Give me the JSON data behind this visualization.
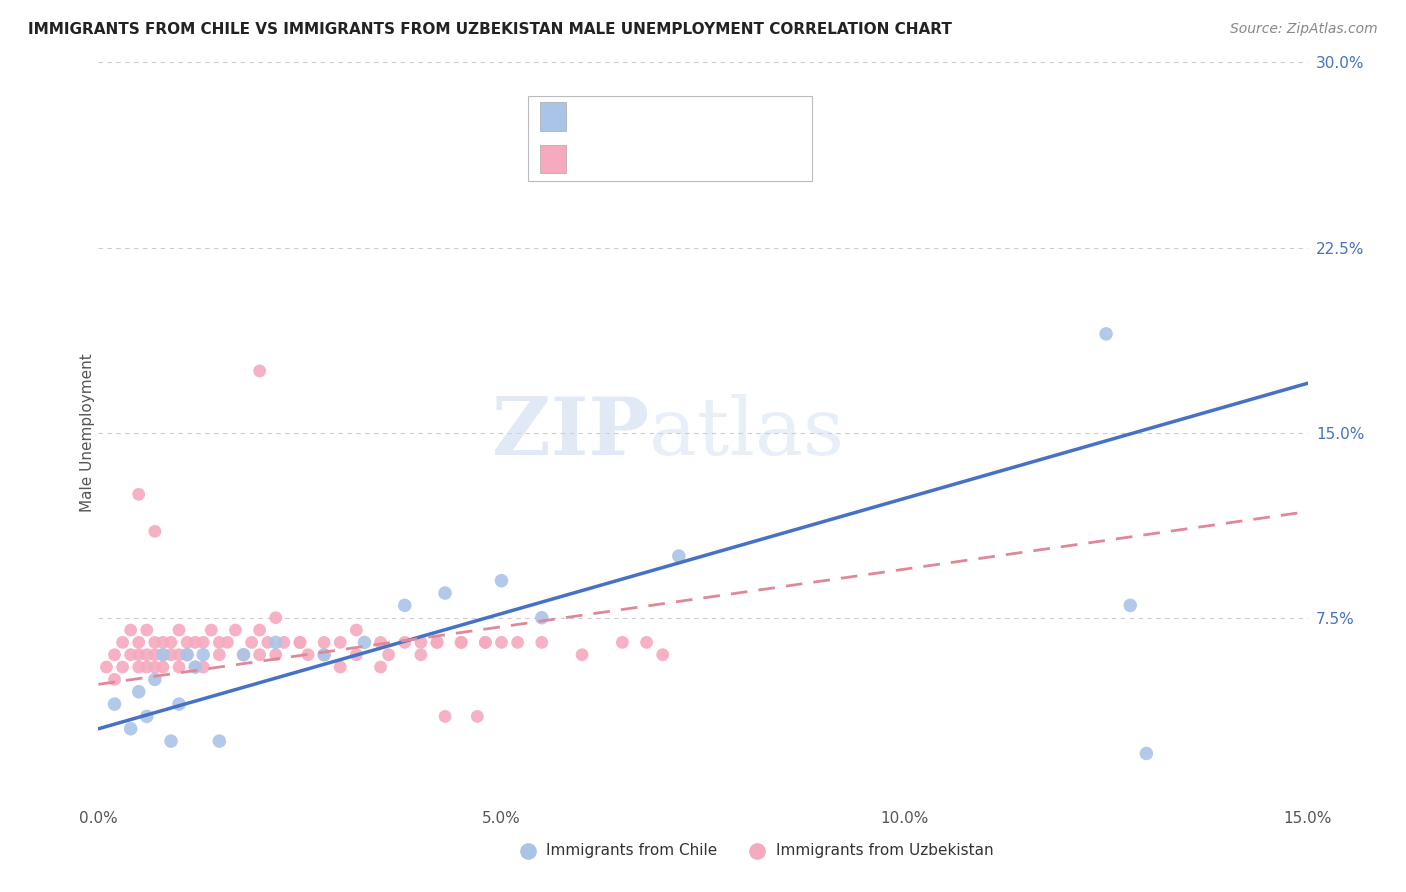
{
  "title": "IMMIGRANTS FROM CHILE VS IMMIGRANTS FROM UZBEKISTAN MALE UNEMPLOYMENT CORRELATION CHART",
  "source": "Source: ZipAtlas.com",
  "ylabel": "Male Unemployment",
  "xlim": [
    0.0,
    0.15
  ],
  "ylim": [
    0.0,
    0.3
  ],
  "xticks": [
    0.0,
    0.025,
    0.05,
    0.075,
    0.1,
    0.125,
    0.15
  ],
  "xticklabels": [
    "0.0%",
    "",
    "5.0%",
    "",
    "10.0%",
    "",
    "15.0%"
  ],
  "yticks": [
    0.075,
    0.15,
    0.225,
    0.3
  ],
  "yticklabels": [
    "7.5%",
    "15.0%",
    "22.5%",
    "30.0%"
  ],
  "chile_color": "#aac4e8",
  "uzbek_color": "#f5aabe",
  "chile_line_color": "#4472c4",
  "uzbek_line_color": "#e08898",
  "watermark_zip": "ZIP",
  "watermark_atlas": "atlas",
  "chile_trend_x": [
    0.0,
    0.15
  ],
  "chile_trend_y": [
    0.03,
    0.17
  ],
  "uzbek_trend_x": [
    0.0,
    0.15
  ],
  "uzbek_trend_y": [
    0.048,
    0.118
  ],
  "chile_x": [
    0.002,
    0.004,
    0.005,
    0.006,
    0.007,
    0.008,
    0.009,
    0.01,
    0.011,
    0.012,
    0.013,
    0.015,
    0.018,
    0.022,
    0.028,
    0.033,
    0.038,
    0.043,
    0.05,
    0.055,
    0.072,
    0.125,
    0.128,
    0.13
  ],
  "chile_y": [
    0.04,
    0.03,
    0.045,
    0.035,
    0.05,
    0.06,
    0.025,
    0.04,
    0.06,
    0.055,
    0.06,
    0.025,
    0.06,
    0.065,
    0.06,
    0.065,
    0.08,
    0.085,
    0.09,
    0.075,
    0.1,
    0.19,
    0.08,
    0.02
  ],
  "uzbek_x": [
    0.001,
    0.002,
    0.002,
    0.003,
    0.003,
    0.004,
    0.004,
    0.005,
    0.005,
    0.005,
    0.006,
    0.006,
    0.006,
    0.007,
    0.007,
    0.007,
    0.008,
    0.008,
    0.008,
    0.009,
    0.009,
    0.01,
    0.01,
    0.01,
    0.011,
    0.011,
    0.012,
    0.012,
    0.013,
    0.013,
    0.014,
    0.015,
    0.015,
    0.016,
    0.017,
    0.018,
    0.019,
    0.02,
    0.021,
    0.022,
    0.023,
    0.025,
    0.026,
    0.028,
    0.03,
    0.032,
    0.035,
    0.036,
    0.038,
    0.04,
    0.042,
    0.043,
    0.045,
    0.047,
    0.048,
    0.02,
    0.022,
    0.025,
    0.028,
    0.03,
    0.032,
    0.035,
    0.04,
    0.042,
    0.045,
    0.048,
    0.05,
    0.052,
    0.055,
    0.06,
    0.065,
    0.068,
    0.07,
    0.005,
    0.007,
    0.02
  ],
  "uzbek_y": [
    0.055,
    0.06,
    0.05,
    0.065,
    0.055,
    0.06,
    0.07,
    0.065,
    0.055,
    0.06,
    0.07,
    0.06,
    0.055,
    0.065,
    0.055,
    0.06,
    0.065,
    0.055,
    0.06,
    0.065,
    0.06,
    0.06,
    0.07,
    0.055,
    0.065,
    0.06,
    0.055,
    0.065,
    0.065,
    0.055,
    0.07,
    0.06,
    0.065,
    0.065,
    0.07,
    0.06,
    0.065,
    0.06,
    0.065,
    0.06,
    0.065,
    0.065,
    0.06,
    0.06,
    0.065,
    0.06,
    0.065,
    0.06,
    0.065,
    0.06,
    0.065,
    0.035,
    0.065,
    0.035,
    0.065,
    0.07,
    0.075,
    0.065,
    0.065,
    0.055,
    0.07,
    0.055,
    0.065,
    0.065,
    0.065,
    0.065,
    0.065,
    0.065,
    0.065,
    0.06,
    0.065,
    0.065,
    0.06,
    0.125,
    0.11,
    0.175
  ]
}
